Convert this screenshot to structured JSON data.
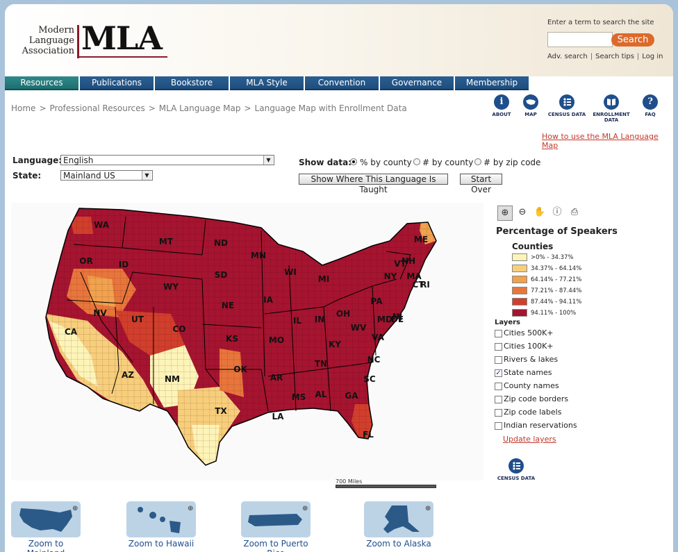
{
  "header": {
    "org_name_line1": "Modern",
    "org_name_line2": "Language",
    "org_name_line3": "Association",
    "logo": "MLA",
    "search_label": "Enter a term to search the site",
    "search_value": "",
    "search_button": "Search",
    "links": [
      "Adv. search",
      "Search tips",
      "Log in"
    ]
  },
  "nav": {
    "items": [
      "Resources",
      "Publications",
      "Bookstore",
      "MLA Style",
      "Convention",
      "Governance",
      "Membership"
    ],
    "active": "Resources"
  },
  "breadcrumb": [
    "Home",
    "Professional Resources",
    "MLA Language Map",
    "Language Map with Enrollment Data"
  ],
  "breadcrumb_sep": ">",
  "tool_icons": [
    {
      "label": "ABOUT",
      "icon": "info-icon",
      "glyph": "i"
    },
    {
      "label": "MAP",
      "icon": "us-map-icon",
      "glyph": ""
    },
    {
      "label": "CENSUS DATA",
      "icon": "census-icon",
      "glyph": ""
    },
    {
      "label": "ENROLLMENT DATA",
      "icon": "book-icon",
      "glyph": ""
    },
    {
      "label": "FAQ",
      "icon": "question-icon",
      "glyph": "?"
    }
  ],
  "howto_link": "How to use the MLA Language Map",
  "controls": {
    "language_label": "Language:",
    "language_value": "English",
    "state_label": "State:",
    "state_value": "Mainland US",
    "show_data_label": "Show data:",
    "show_data_options": [
      "% by county",
      "# by county",
      "# by zip code"
    ],
    "show_data_selected": "% by county",
    "show_button": "Show Where This Language Is Taught",
    "start_over_button": "Start Over"
  },
  "map": {
    "states": [
      "WA",
      "MT",
      "ND",
      "MN",
      "OR",
      "ID",
      "SD",
      "WI",
      "MI",
      "ME",
      "NH",
      "VT",
      "NY",
      "MA",
      "CT",
      "RI",
      "WY",
      "NE",
      "IA",
      "PA",
      "NJ",
      "DE",
      "MD",
      "NV",
      "UT",
      "CO",
      "IL",
      "IN",
      "OH",
      "WV",
      "VA",
      "CA",
      "KS",
      "MO",
      "KY",
      "AZ",
      "NM",
      "OK",
      "AR",
      "TN",
      "NC",
      "SC",
      "TX",
      "MS",
      "AL",
      "GA",
      "LA",
      "FL"
    ],
    "scale_label": "700 Miles"
  },
  "map_tools": [
    "zoom-in-icon",
    "zoom-out-icon",
    "pan-hand-icon",
    "identify-info-icon",
    "print-icon"
  ],
  "legend": {
    "title": "Percentage of Speakers",
    "subtitle": "Counties",
    "items": [
      {
        "label": ">0% - 34.37%",
        "color": "#fdf4b8"
      },
      {
        "label": "34.37% - 64.14%",
        "color": "#f7cf7c"
      },
      {
        "label": "64.14% - 77.21%",
        "color": "#f0a24e"
      },
      {
        "label": "77.21% - 87.44%",
        "color": "#e8763c"
      },
      {
        "label": "87.44% - 94.11%",
        "color": "#d13f2c"
      },
      {
        "label": "94.11% - 100%",
        "color": "#a51430"
      }
    ]
  },
  "layers": {
    "title": "Layers",
    "items": [
      {
        "label": "Cities 500K+",
        "checked": false
      },
      {
        "label": "Cities 100K+",
        "checked": false
      },
      {
        "label": "Rivers & lakes",
        "checked": false
      },
      {
        "label": "State names",
        "checked": true
      },
      {
        "label": "County names",
        "checked": false
      },
      {
        "label": "Zip code borders",
        "checked": false
      },
      {
        "label": "Zip code labels",
        "checked": false
      },
      {
        "label": "Indian reservations",
        "checked": false
      }
    ],
    "update_link": "Update layers"
  },
  "census_button": "CENSUS DATA",
  "zoom_thumbs": [
    "Zoom to Mainland",
    "Zoom to Hawaii",
    "Zoom to Puerto Rico",
    "Zoom to Alaska"
  ],
  "colors": {
    "nav_blue": "#1f4e7d",
    "nav_active": "#1e6e70",
    "brand_red": "#8b1a2b",
    "search_orange": "#dc6a2c",
    "link_red": "#c0392b"
  }
}
